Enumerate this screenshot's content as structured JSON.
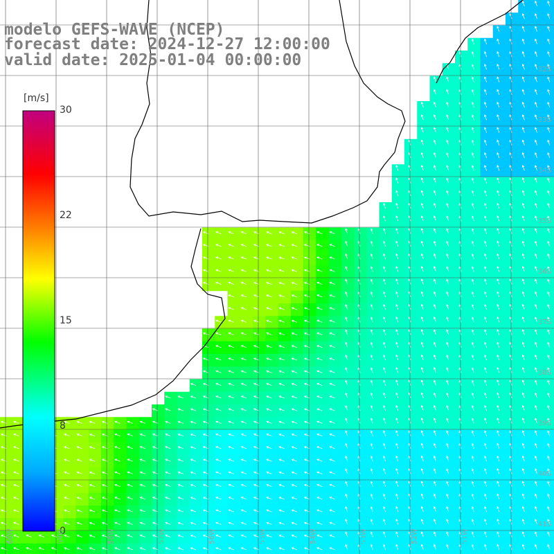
{
  "title": {
    "model": "modelo GEFS-WAVE (NCEP)",
    "forecast": "forecast date: 2024-12-27 12:00:00",
    "valid": "valid date: 2025-01-04 00:00:00"
  },
  "colorbar": {
    "unit": "[m/s]",
    "ticks": [
      "30",
      "22",
      "15",
      "8",
      "0"
    ],
    "range": [
      0,
      30
    ],
    "colors": [
      "#0000ff",
      "#00aaff",
      "#00ffff",
      "#00ff00",
      "#ffff00",
      "#ff8000",
      "#ff0000",
      "#c00080"
    ]
  },
  "lat_labels": [
    "32S",
    "33S",
    "34S",
    "35S",
    "36S",
    "37S",
    "38S",
    "39S",
    "40S",
    "41S"
  ],
  "lon_labels": [
    "60W",
    "59W",
    "58W",
    "57W",
    "56W",
    "55W",
    "54W",
    "53W",
    "52W",
    "51W"
  ],
  "colors": {
    "land": "#ffffff",
    "grid": "#555555",
    "coast": "#000000",
    "arrow": "#ffffff",
    "title": "#7f7f7f"
  }
}
